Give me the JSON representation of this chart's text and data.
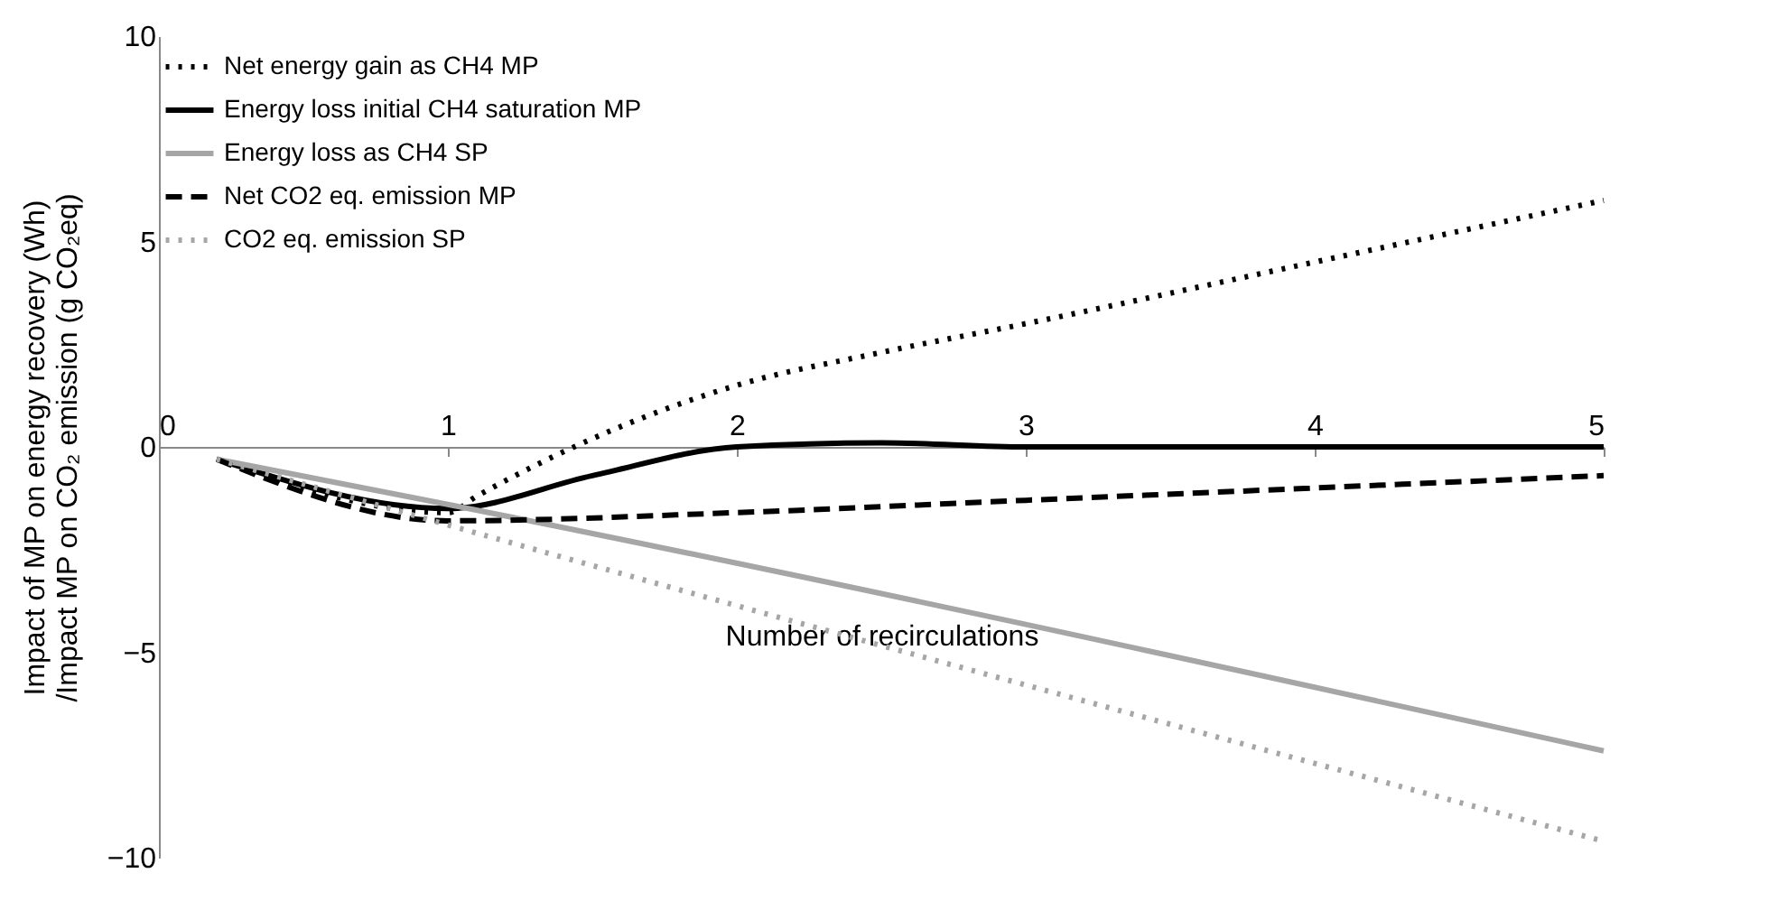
{
  "chart_data": {
    "type": "line",
    "xlabel": "Number of recirculations",
    "ylabel": [
      "Impact of MP on energy recovery (Wh)",
      "/Impact MP on CO₂ emission (g CO₂eq)"
    ],
    "xlim": [
      0,
      5
    ],
    "xticks": [
      0,
      1,
      2,
      3,
      4,
      5
    ],
    "ylim": [
      -10,
      10
    ],
    "yticks": [
      -10,
      -5,
      0,
      5,
      10
    ],
    "grid": false,
    "legend": "top left",
    "series": [
      {
        "name": "Net energy gain as CH4 MP",
        "color": "#000000",
        "line_style": "dotted",
        "x": [
          0.2,
          1,
          1.1,
          1.5,
          2,
          2.5,
          3,
          4,
          5
        ],
        "values": [
          -0.3,
          -1.6,
          -1.2,
          0.2,
          1.5,
          2.3,
          3,
          4.5,
          6
        ]
      },
      {
        "name": "Energy loss initial CH4 saturation MP",
        "color": "#000000",
        "line_style": "solid",
        "x": [
          0.2,
          1,
          1.5,
          2,
          2.5,
          3,
          5
        ],
        "values": [
          -0.3,
          -1.5,
          -0.7,
          0,
          0.1,
          0,
          0
        ]
      },
      {
        "name": "Energy loss as CH4 SP",
        "color": "#a6a6a6",
        "line_style": "solid",
        "x": [
          0.2,
          1,
          5
        ],
        "values": [
          -0.3,
          -1.4,
          -7.4
        ]
      },
      {
        "name": "Net CO2 eq. emission MP",
        "color": "#000000",
        "line_style": "dashed",
        "x": [
          0.2,
          1,
          2,
          3,
          4,
          5
        ],
        "values": [
          -0.3,
          -1.8,
          -1.6,
          -1.3,
          -1,
          -0.7
        ]
      },
      {
        "name": "CO2 eq. emission SP",
        "color": "#a6a6a6",
        "line_style": "dotted",
        "x": [
          0.2,
          1,
          5
        ],
        "values": [
          -0.3,
          -1.9,
          -9.6
        ]
      }
    ]
  }
}
